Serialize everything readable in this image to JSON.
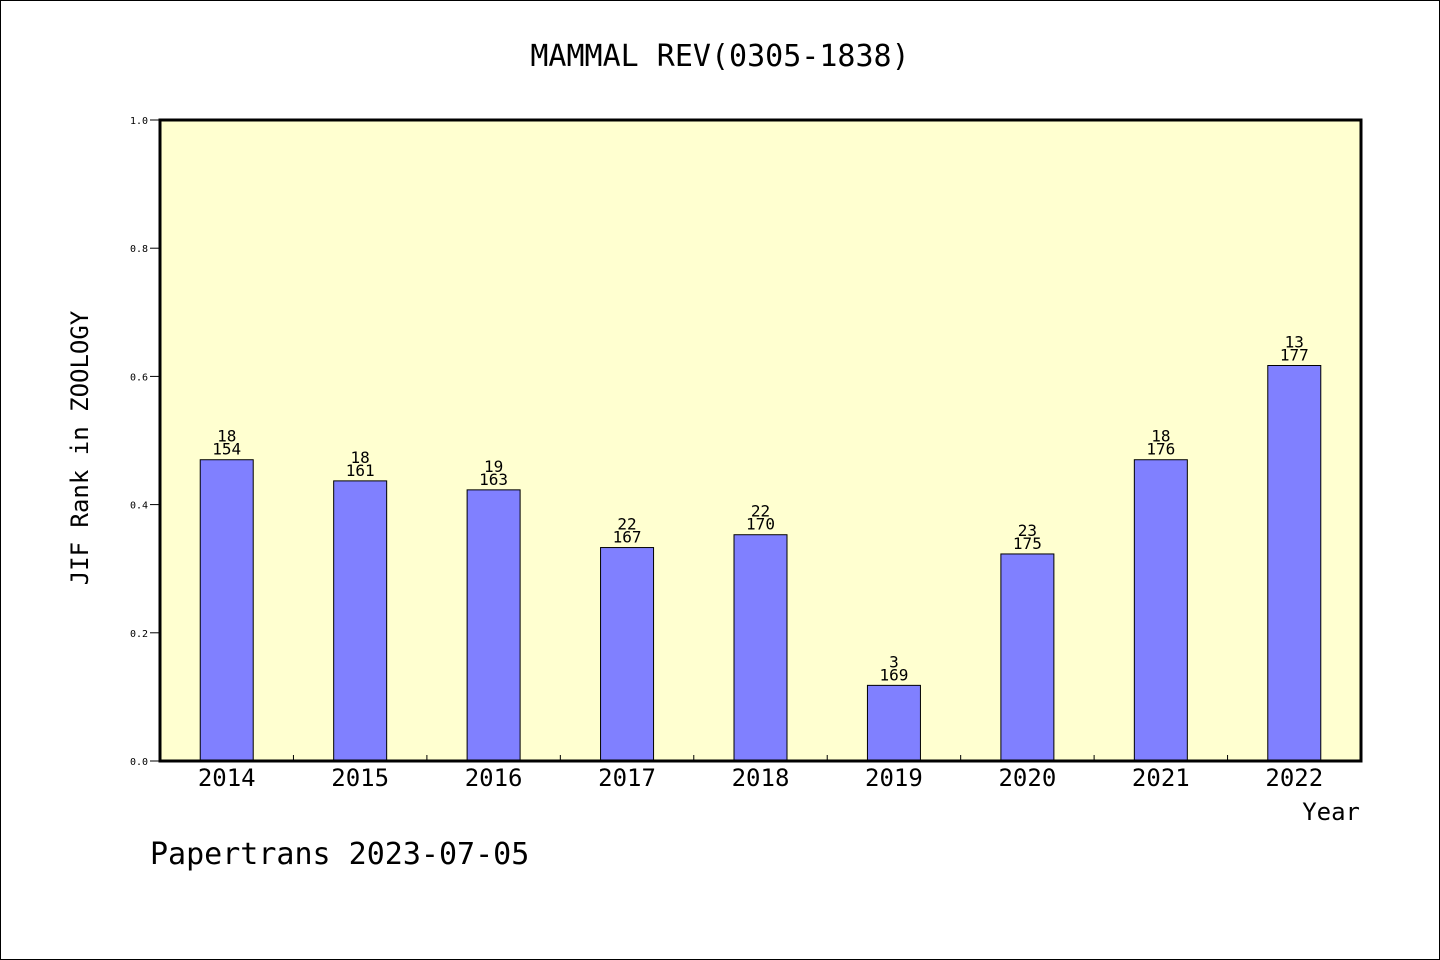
{
  "chart_data": {
    "type": "bar",
    "title": "MAMMAL REV(0305-1838)",
    "xlabel": "Year",
    "ylabel": "JIF Rank in ZOOLOGY",
    "categories": [
      "2014",
      "2015",
      "2016",
      "2017",
      "2018",
      "2019",
      "2020",
      "2021",
      "2022"
    ],
    "values": [
      0.47,
      0.437,
      0.423,
      0.333,
      0.353,
      0.118,
      0.323,
      0.47,
      0.617
    ],
    "rank_labels": [
      "18",
      "18",
      "19",
      "22",
      "22",
      "3",
      "23",
      "18",
      "13"
    ],
    "total_labels": [
      "154",
      "161",
      "163",
      "167",
      "170",
      "169",
      "175",
      "176",
      "177"
    ],
    "ylim": [
      0,
      1.0
    ],
    "yticks": [
      "0.0",
      "0.2",
      "0.4",
      "0.6",
      "0.8",
      "1.0"
    ],
    "grid": false,
    "colors": {
      "bar": "#8080ff",
      "plot_background": "#ffffd0"
    }
  },
  "footer": "Papertrans 2023-07-05"
}
